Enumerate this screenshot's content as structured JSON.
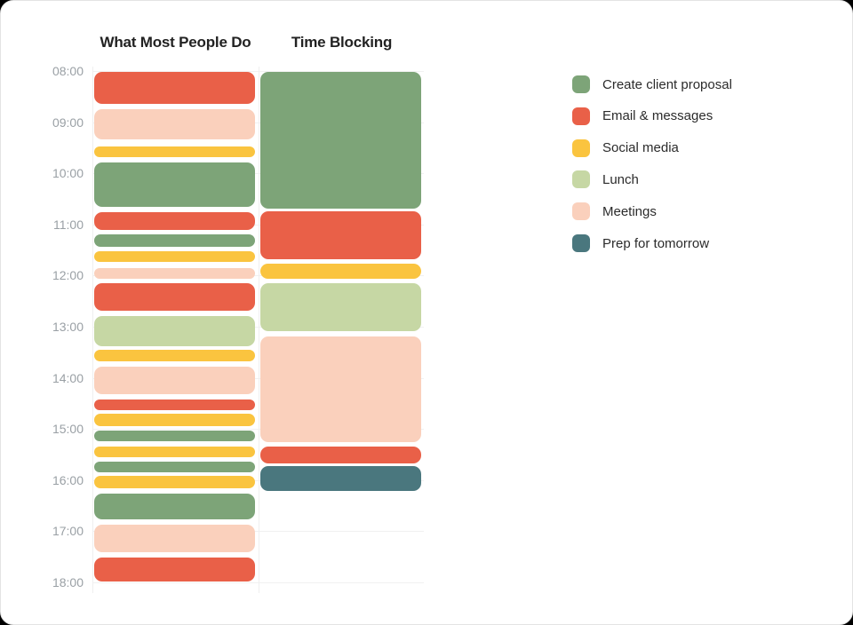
{
  "page": {
    "outside_background": "#000000",
    "card_background": "#ffffff",
    "card_border_color": "#e3e3e3"
  },
  "chart_data": {
    "type": "schedule_comparison_calendar",
    "title_left": "What Most People Do",
    "title_right": "Time Blocking",
    "grid": true,
    "legend_position": "right",
    "time_axis": {
      "start": "08:00",
      "end": "18:00",
      "ticks": [
        "08:00",
        "09:00",
        "10:00",
        "11:00",
        "12:00",
        "13:00",
        "14:00",
        "15:00",
        "16:00",
        "17:00",
        "18:00"
      ]
    },
    "categories": [
      {
        "label": "Create client proposal",
        "color": "#7DA478"
      },
      {
        "label": "Email & messages",
        "color": "#E96048"
      },
      {
        "label": "Social media",
        "color": "#FAC43F"
      },
      {
        "label": "Lunch",
        "color": "#C6D7A4"
      },
      {
        "label": "Meetings",
        "color": "#FAD0BC"
      },
      {
        "label": "Prep for tomorrow",
        "color": "#4A777E"
      }
    ],
    "columns": [
      {
        "title": "What Most People Do",
        "events": [
          {
            "category": "Email & messages",
            "start": "08:00",
            "end": "08:40"
          },
          {
            "category": "Meetings",
            "start": "08:44",
            "end": "09:21"
          },
          {
            "category": "Social media",
            "start": "09:27",
            "end": "09:42"
          },
          {
            "category": "Create client proposal",
            "start": "09:46",
            "end": "10:40"
          },
          {
            "category": "Email & messages",
            "start": "10:45",
            "end": "11:07"
          },
          {
            "category": "Create client proposal",
            "start": "11:11",
            "end": "11:27"
          },
          {
            "category": "Social media",
            "start": "11:30",
            "end": "11:45"
          },
          {
            "category": "Meetings",
            "start": "11:50",
            "end": "12:05"
          },
          {
            "category": "Email & messages",
            "start": "12:08",
            "end": "12:42"
          },
          {
            "category": "Lunch",
            "start": "12:46",
            "end": "13:24"
          },
          {
            "category": "Social media",
            "start": "13:26",
            "end": "13:42"
          },
          {
            "category": "Meetings",
            "start": "13:46",
            "end": "14:20"
          },
          {
            "category": "Email & messages",
            "start": "14:24",
            "end": "14:39"
          },
          {
            "category": "Social media",
            "start": "14:41",
            "end": "14:58"
          },
          {
            "category": "Create client proposal",
            "start": "15:01",
            "end": "15:15"
          },
          {
            "category": "Social media",
            "start": "15:20",
            "end": "15:34"
          },
          {
            "category": "Create client proposal",
            "start": "15:37",
            "end": "15:52"
          },
          {
            "category": "Social media",
            "start": "15:54",
            "end": "16:11"
          },
          {
            "category": "Create client proposal",
            "start": "16:15",
            "end": "16:47"
          },
          {
            "category": "Meetings",
            "start": "16:51",
            "end": "17:26"
          },
          {
            "category": "Email & messages",
            "start": "17:30",
            "end": "18:00"
          }
        ]
      },
      {
        "title": "Time Blocking",
        "events": [
          {
            "category": "Create client proposal",
            "start": "08:00",
            "end": "10:42"
          },
          {
            "category": "Email & messages",
            "start": "10:44",
            "end": "11:42"
          },
          {
            "category": "Social media",
            "start": "11:45",
            "end": "12:05"
          },
          {
            "category": "Lunch",
            "start": "12:08",
            "end": "13:06"
          },
          {
            "category": "Meetings",
            "start": "13:10",
            "end": "15:16"
          },
          {
            "category": "Email & messages",
            "start": "15:20",
            "end": "15:41"
          },
          {
            "category": "Prep for tomorrow",
            "start": "15:43",
            "end": "16:14"
          }
        ]
      }
    ]
  }
}
